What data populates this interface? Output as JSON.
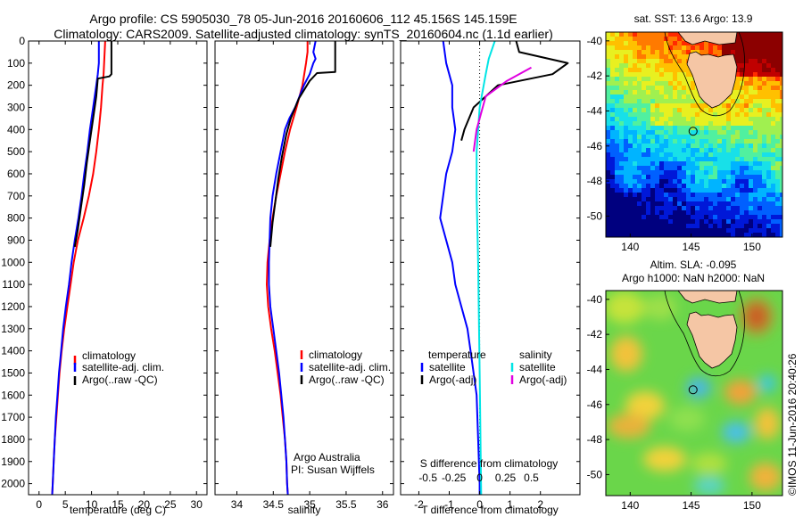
{
  "header": {
    "title_line1": "Argo profile: CS 5905030_78 05-Jun-2016 20160606_112 45.156S 145.159E",
    "title_line2": "Climatology: CARS2009. Satellite-adjusted climatology: synTS_20160604.nc (1.1d earlier)"
  },
  "colors": {
    "climatology": "#ff0000",
    "satellite": "#0000ff",
    "argo": "#000000",
    "salinity_satellite": "#00e5e5",
    "salinity_argo": "#e000e0"
  },
  "chart_data": [
    {
      "type": "line",
      "title": "",
      "xlabel": "temperature (deg C)",
      "ylabel": "",
      "xlim": [
        -2,
        32
      ],
      "ylim": [
        2050,
        0
      ],
      "xticks": [
        0,
        5,
        10,
        15,
        20,
        25,
        30
      ],
      "yticks": [
        0,
        100,
        200,
        300,
        400,
        500,
        600,
        700,
        800,
        900,
        1000,
        1100,
        1200,
        1300,
        1400,
        1500,
        1600,
        1700,
        1800,
        1900,
        2000
      ],
      "legend": [
        "climatology",
        "satellite-adj. clim.",
        "Argo(..raw -QC)"
      ],
      "series": [
        {
          "name": "climatology",
          "color": "#ff0000",
          "points": [
            [
              12.6,
              0
            ],
            [
              12.5,
              50
            ],
            [
              12.4,
              100
            ],
            [
              12.3,
              150
            ],
            [
              12.1,
              200
            ],
            [
              11.8,
              300
            ],
            [
              11.4,
              400
            ],
            [
              10.9,
              500
            ],
            [
              10.3,
              600
            ],
            [
              9.5,
              700
            ],
            [
              8.5,
              800
            ],
            [
              7.4,
              900
            ],
            [
              6.6,
              1000
            ],
            [
              6.0,
              1100
            ],
            [
              5.4,
              1200
            ],
            [
              4.8,
              1300
            ],
            [
              4.3,
              1400
            ],
            [
              3.9,
              1500
            ],
            [
              3.6,
              1600
            ],
            [
              3.3,
              1700
            ],
            [
              3.0,
              1800
            ],
            [
              2.8,
              1900
            ],
            [
              2.6,
              2000
            ],
            [
              2.5,
              2050
            ]
          ]
        },
        {
          "name": "satellite-adj. clim.",
          "color": "#0000ff",
          "points": [
            [
              11.4,
              0
            ],
            [
              11.4,
              50
            ],
            [
              11.4,
              100
            ],
            [
              11.2,
              150
            ],
            [
              10.9,
              200
            ],
            [
              10.3,
              300
            ],
            [
              9.7,
              400
            ],
            [
              9.2,
              500
            ],
            [
              8.6,
              600
            ],
            [
              8.1,
              700
            ],
            [
              7.5,
              800
            ],
            [
              6.8,
              900
            ],
            [
              6.2,
              1000
            ],
            [
              5.7,
              1100
            ],
            [
              5.1,
              1200
            ],
            [
              4.6,
              1300
            ],
            [
              4.2,
              1400
            ],
            [
              3.8,
              1500
            ],
            [
              3.5,
              1600
            ],
            [
              3.2,
              1700
            ],
            [
              3.0,
              1800
            ],
            [
              2.8,
              1900
            ],
            [
              2.6,
              2000
            ],
            [
              2.5,
              2050
            ]
          ]
        },
        {
          "name": "Argo(..raw -QC)",
          "color": "#000000",
          "points": [
            [
              13.8,
              0
            ],
            [
              13.8,
              100
            ],
            [
              13.8,
              150
            ],
            [
              13.4,
              160
            ],
            [
              11.2,
              170
            ],
            [
              10.9,
              250
            ],
            [
              10.3,
              350
            ],
            [
              9.7,
              450
            ],
            [
              9.1,
              550
            ],
            [
              8.6,
              650
            ],
            [
              8.0,
              750
            ],
            [
              7.4,
              850
            ],
            [
              6.8,
              930
            ]
          ]
        }
      ]
    },
    {
      "type": "line",
      "title": "",
      "xlabel": "salinity",
      "ylabel": "",
      "xlim": [
        33.7,
        36.15
      ],
      "ylim": [
        2050,
        0
      ],
      "xticks": [
        34,
        34.5,
        35,
        35.5,
        36
      ],
      "legend": [
        "climatology",
        "satellite-adj. clim.",
        "Argo(..raw -QC)"
      ],
      "annotations": [
        "Argo Australia",
        "PI: Susan Wijffels"
      ],
      "series": [
        {
          "name": "climatology",
          "color": "#ff0000",
          "points": [
            [
              34.97,
              0
            ],
            [
              34.97,
              50
            ],
            [
              34.95,
              100
            ],
            [
              34.9,
              200
            ],
            [
              34.82,
              300
            ],
            [
              34.73,
              400
            ],
            [
              34.66,
              500
            ],
            [
              34.6,
              600
            ],
            [
              34.54,
              700
            ],
            [
              34.49,
              800
            ],
            [
              34.45,
              900
            ],
            [
              34.42,
              1000
            ],
            [
              34.41,
              1100
            ],
            [
              34.43,
              1200
            ],
            [
              34.47,
              1300
            ],
            [
              34.52,
              1400
            ],
            [
              34.56,
              1500
            ],
            [
              34.6,
              1600
            ],
            [
              34.63,
              1700
            ],
            [
              34.66,
              1800
            ],
            [
              34.68,
              1900
            ],
            [
              34.69,
              2000
            ],
            [
              34.7,
              2050
            ]
          ]
        },
        {
          "name": "satellite-adj. clim.",
          "color": "#0000ff",
          "points": [
            [
              35.08,
              0
            ],
            [
              35.05,
              50
            ],
            [
              35.08,
              80
            ],
            [
              35.05,
              100
            ],
            [
              35.0,
              150
            ],
            [
              34.92,
              200
            ],
            [
              34.8,
              300
            ],
            [
              34.72,
              350
            ],
            [
              34.66,
              400
            ],
            [
              34.6,
              500
            ],
            [
              34.54,
              600
            ],
            [
              34.49,
              700
            ],
            [
              34.46,
              800
            ],
            [
              34.45,
              900
            ],
            [
              34.44,
              1000
            ],
            [
              34.44,
              1100
            ],
            [
              34.46,
              1200
            ],
            [
              34.5,
              1300
            ],
            [
              34.54,
              1400
            ],
            [
              34.58,
              1500
            ],
            [
              34.61,
              1600
            ],
            [
              34.64,
              1700
            ],
            [
              34.66,
              1800
            ],
            [
              34.68,
              1900
            ],
            [
              34.69,
              2000
            ],
            [
              34.7,
              2050
            ]
          ]
        },
        {
          "name": "Argo(..raw -QC)",
          "color": "#000000",
          "points": [
            [
              35.35,
              0
            ],
            [
              35.35,
              140
            ],
            [
              35.1,
              145
            ],
            [
              35.0,
              180
            ],
            [
              34.85,
              260
            ],
            [
              34.74,
              350
            ],
            [
              34.68,
              420
            ],
            [
              34.62,
              520
            ],
            [
              34.57,
              620
            ],
            [
              34.53,
              720
            ],
            [
              34.49,
              820
            ],
            [
              34.46,
              930
            ]
          ]
        }
      ]
    },
    {
      "type": "line",
      "title": "",
      "xlabel": "T difference from climatology",
      "x2label": "S difference from climatology",
      "ylabel": "",
      "xlim": [
        -2.6,
        3.3
      ],
      "ylim": [
        2050,
        0
      ],
      "xticks": [
        -2,
        -1,
        0,
        1,
        2
      ],
      "x2ticks": [
        "-0.5",
        "-0.25",
        "0",
        "0.25",
        "0.5"
      ],
      "legend": [
        "temperature",
        "satellite",
        "Argo(-adj)",
        "salinity",
        "satellite",
        "Argo(-adj)"
      ],
      "series": [
        {
          "name": "temperature satellite",
          "color": "#0000ff",
          "points": [
            [
              -1.2,
              0
            ],
            [
              -1.1,
              100
            ],
            [
              -0.9,
              200
            ],
            [
              -0.9,
              300
            ],
            [
              -0.8,
              400
            ],
            [
              -0.9,
              500
            ],
            [
              -1.1,
              600
            ],
            [
              -1.2,
              700
            ],
            [
              -1.3,
              800
            ],
            [
              -1.1,
              900
            ],
            [
              -0.9,
              1000
            ],
            [
              -0.8,
              1100
            ],
            [
              -0.6,
              1200
            ],
            [
              -0.4,
              1300
            ],
            [
              -0.3,
              1400
            ],
            [
              -0.2,
              1500
            ],
            [
              -0.1,
              1600
            ],
            [
              -0.05,
              1800
            ],
            [
              0.0,
              2000
            ],
            [
              0.0,
              2050
            ]
          ]
        },
        {
          "name": "temperature Argo(-adj)",
          "color": "#000000",
          "points": [
            [
              1.2,
              0
            ],
            [
              1.3,
              50
            ],
            [
              2.9,
              100
            ],
            [
              2.4,
              150
            ],
            [
              0.6,
              200
            ],
            [
              -0.2,
              300
            ],
            [
              -0.5,
              400
            ],
            [
              -0.6,
              450
            ]
          ]
        },
        {
          "name": "salinity satellite",
          "color": "#00e5e5",
          "points": [
            [
              0.5,
              0
            ],
            [
              0.3,
              80
            ],
            [
              0.2,
              150
            ],
            [
              0.0,
              300
            ],
            [
              -0.1,
              500
            ],
            [
              -0.1,
              700
            ],
            [
              -0.05,
              1000
            ],
            [
              0.0,
              1500
            ],
            [
              0.05,
              2050
            ]
          ]
        },
        {
          "name": "salinity Argo(-adj)",
          "color": "#e000e0",
          "points": [
            [
              1.7,
              120
            ],
            [
              0.9,
              180
            ],
            [
              0.2,
              250
            ],
            [
              -0.1,
              400
            ],
            [
              -0.2,
              500
            ]
          ]
        }
      ]
    },
    {
      "type": "heatmap",
      "title": "sat. SST: 13.6  Argo: 13.9",
      "xlim": [
        138,
        152.5
      ],
      "ylim": [
        -51.2,
        -39.5
      ],
      "xticks": [
        140,
        145,
        150
      ],
      "yticks": [
        -40,
        -42,
        -44,
        -46,
        -48,
        -50
      ],
      "marker": [
        145.16,
        -45.16
      ]
    },
    {
      "type": "heatmap",
      "title": "Altim. SLA: -0.095",
      "subtitle": "Argo h1000: NaN  h2000: NaN",
      "xlim": [
        138,
        152.5
      ],
      "ylim": [
        -51.2,
        -39.5
      ],
      "xticks": [
        140,
        145,
        150
      ],
      "yticks": [
        -40,
        -42,
        -44,
        -46,
        -48,
        -50
      ],
      "marker": [
        145.16,
        -45.16
      ]
    }
  ],
  "footer": {
    "credit": "©IMOS 11-Jun-2016 20:40:26"
  }
}
